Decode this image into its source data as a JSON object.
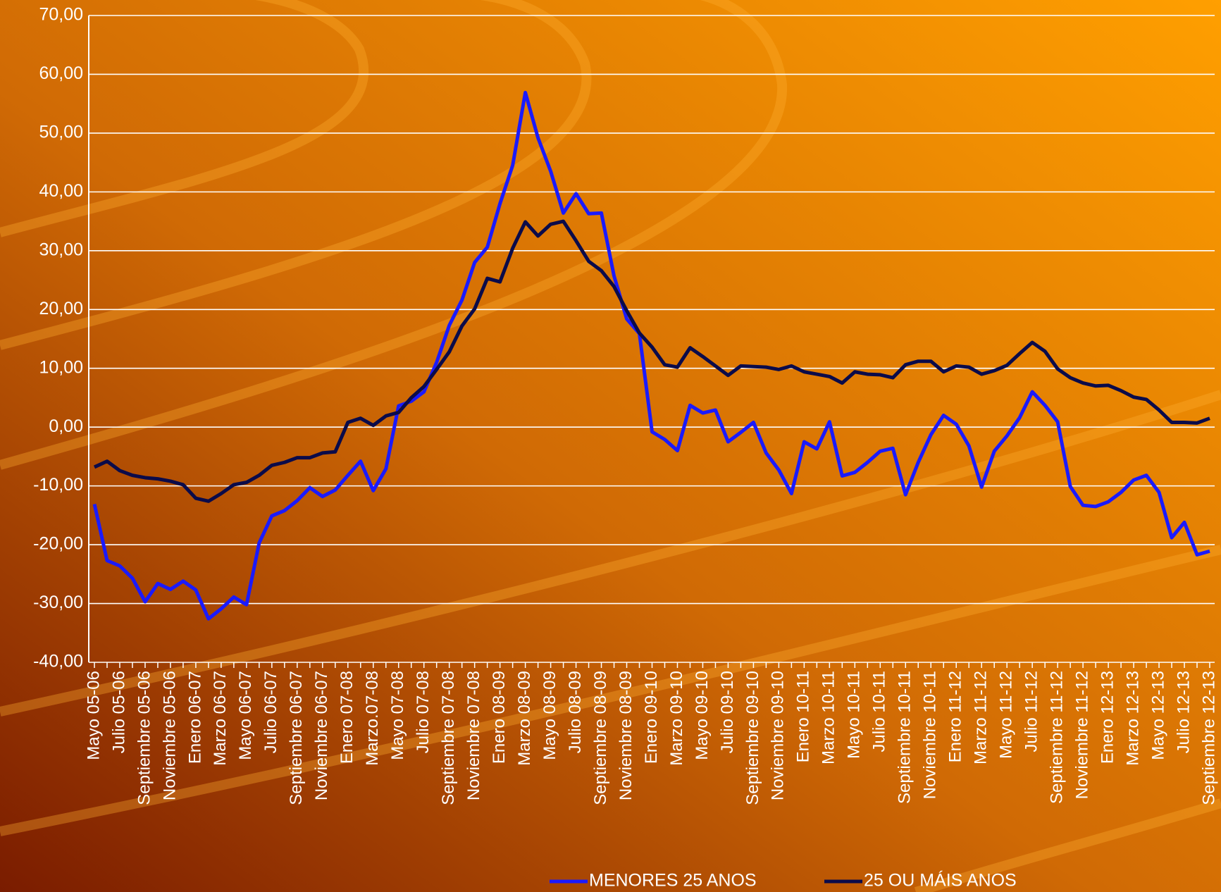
{
  "chart_data": {
    "type": "line",
    "categories": [
      "Mayo 05-06",
      null,
      "Julio 05-06",
      null,
      "Septiembre 05-06",
      null,
      "Noviembre 05-06",
      null,
      "Enero 06-07",
      null,
      "Marzo 06-07",
      null,
      "Mayo 06-07",
      null,
      "Julio 06-07",
      null,
      "Septiembre 06-07",
      null,
      "Noviembre 06-07",
      null,
      "Enero 07-08",
      null,
      "Marzo.07-08",
      null,
      "Mayo 07-08",
      null,
      "Julio 07-08",
      null,
      "Septiembre 07-08",
      null,
      "Noviembre 07-08",
      null,
      "Enero 08-09",
      null,
      "Marzo 08-09",
      null,
      "Mayo 08-09",
      null,
      "Julio 08-09",
      null,
      "Septiembre 08-09",
      null,
      "Noviembre 08-09",
      null,
      "Enero 09-10",
      null,
      "Marzo 09-10",
      null,
      "Mayo 09-10",
      null,
      "Julio 09-10",
      null,
      "Septiembre 09-10",
      null,
      "Noviembre 09-10",
      null,
      "Enero 10-11",
      null,
      "Marzo 10-11",
      null,
      "Mayo 10-11",
      null,
      "Julio 10-11",
      null,
      "Septiembre 10-11",
      null,
      "Noviembre 10-11",
      null,
      "Enero 11-12",
      null,
      "Marzo 11-12",
      null,
      "Mayo 11-12",
      null,
      "Julio 11-12",
      null,
      "Septiembre 11-12",
      null,
      "Noviembre 11-12",
      null,
      "Enero 12-13",
      null,
      "Marzo 12-13",
      null,
      "Mayo 12-13",
      null,
      "Julio 12-13",
      null,
      "Septiembre 12-13"
    ],
    "series": [
      {
        "name": "MENORES 25 ANOS",
        "color": "#1a1aff",
        "values": [
          -13.1,
          -22.7,
          -23.6,
          -25.7,
          -29.7,
          -26.6,
          -27.6,
          -26.2,
          -27.7,
          -32.6,
          -30.9,
          -28.9,
          -30.2,
          -19.7,
          -15.1,
          -14.2,
          -12.5,
          -10.3,
          -11.8,
          -10.7,
          -8.2,
          -5.8,
          -10.8,
          -7.1,
          3.6,
          4.4,
          6.0,
          11.0,
          17.3,
          21.6,
          28.0,
          30.6,
          38.0,
          44.5,
          56.9,
          49.2,
          43.5,
          36.4,
          39.7,
          36.3,
          36.4,
          25.7,
          18.4,
          15.9,
          -0.8,
          -2.1,
          -4.0,
          3.7,
          2.4,
          2.9,
          -2.5,
          -0.9,
          0.8,
          -4.4,
          -7.3,
          -11.3,
          -2.5,
          -3.7,
          0.9,
          -8.3,
          -7.7,
          -6.0,
          -4.1,
          -3.6,
          -11.5,
          -6.0,
          -1.3,
          2.0,
          0.5,
          -3.2,
          -10.2,
          -4.1,
          -1.5,
          1.6,
          6.0,
          3.7,
          0.9,
          -10.1,
          -13.3,
          -13.5,
          -12.7,
          -11.1,
          -9.0,
          -8.2,
          -11.1,
          -18.8,
          -16.2,
          -21.7,
          -21.1
        ]
      },
      {
        "name": "25 OU MÁIS ANOS",
        "color": "#0b0b4a",
        "values": [
          -6.8,
          -5.8,
          -7.4,
          -8.2,
          -8.6,
          -8.8,
          -9.2,
          -9.8,
          -12.1,
          -12.6,
          -11.3,
          -9.8,
          -9.4,
          -8.2,
          -6.5,
          -6.0,
          -5.2,
          -5.2,
          -4.4,
          -4.2,
          0.8,
          1.5,
          0.3,
          1.9,
          2.5,
          5.0,
          6.9,
          9.8,
          12.8,
          17.2,
          20.1,
          25.3,
          24.7,
          30.4,
          34.9,
          32.5,
          34.5,
          35.0,
          31.7,
          28.2,
          26.6,
          23.9,
          19.8,
          16.0,
          13.6,
          10.6,
          10.2,
          13.5,
          12.0,
          10.4,
          8.8,
          10.4,
          10.3,
          10.2,
          9.8,
          10.4,
          9.4,
          9.0,
          8.6,
          7.5,
          9.4,
          9.0,
          8.9,
          8.4,
          10.6,
          11.2,
          11.2,
          9.4,
          10.4,
          10.2,
          9.0,
          9.6,
          10.5,
          12.5,
          14.4,
          12.9,
          9.9,
          8.4,
          7.5,
          7.0,
          7.1,
          6.2,
          5.1,
          4.7,
          2.9,
          0.8,
          0.8,
          0.7,
          1.5
        ]
      }
    ],
    "ylim": [
      -40,
      70
    ],
    "yticks": [
      {
        "value": -40,
        "label": "-40,00"
      },
      {
        "value": -30,
        "label": "-30,00"
      },
      {
        "value": -20,
        "label": "-20,00"
      },
      {
        "value": -10,
        "label": "-10,00"
      },
      {
        "value": 0,
        "label": "0,00"
      },
      {
        "value": 10,
        "label": "10,00"
      },
      {
        "value": 20,
        "label": "20,00"
      },
      {
        "value": 30,
        "label": "30,00"
      },
      {
        "value": 40,
        "label": "40,00"
      },
      {
        "value": 50,
        "label": "50,00"
      },
      {
        "value": 60,
        "label": "60,00"
      },
      {
        "value": 70,
        "label": "70,00"
      }
    ],
    "grid": true,
    "legend": "bottom"
  }
}
